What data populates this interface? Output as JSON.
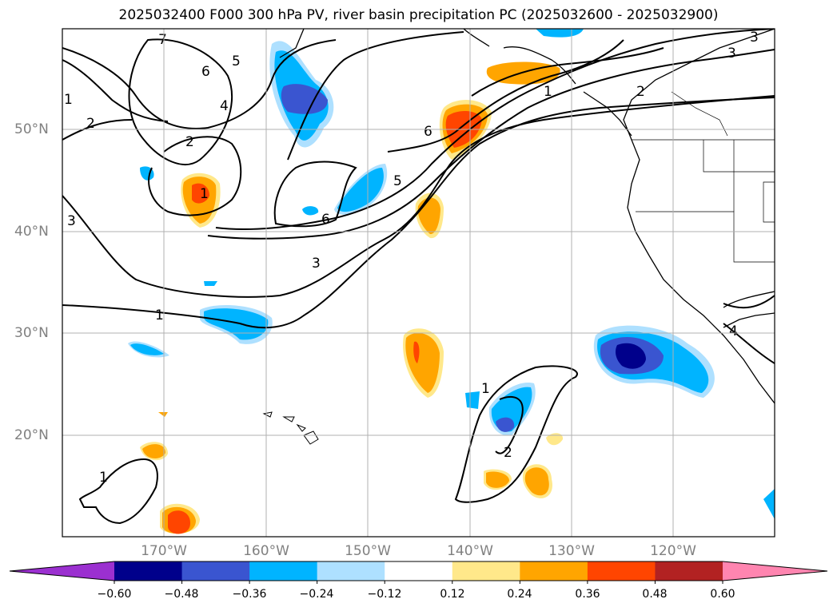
{
  "title": "2025032400 F000 300 hPa PV, river basin precipitation PC (2025032600 - 2025032900)",
  "lat_labels": [
    "50°N",
    "40°N",
    "30°N",
    "20°N"
  ],
  "lon_labels": [
    "170°W",
    "160°W",
    "150°W",
    "140°W",
    "130°W",
    "120°W"
  ],
  "colorbar": {
    "ticks": [
      "−0.60",
      "−0.48",
      "−0.36",
      "−0.24",
      "−0.12",
      "0.12",
      "0.24",
      "0.36",
      "0.48",
      "0.60"
    ],
    "colors": [
      "#9b30d0",
      "#00008b",
      "#3a55d0",
      "#00b4ff",
      "#aee0ff",
      "#ffffff",
      "#ffe88a",
      "#ffa500",
      "#ff4500",
      "#b22222",
      "#ff85b0"
    ]
  },
  "contour_labels": [
    "1",
    "2",
    "3",
    "4",
    "5",
    "6",
    "7",
    "1",
    "2",
    "3",
    "5",
    "6",
    "6",
    "3",
    "2",
    "1",
    "1",
    "2",
    "1",
    "1",
    "3",
    "4"
  ]
}
